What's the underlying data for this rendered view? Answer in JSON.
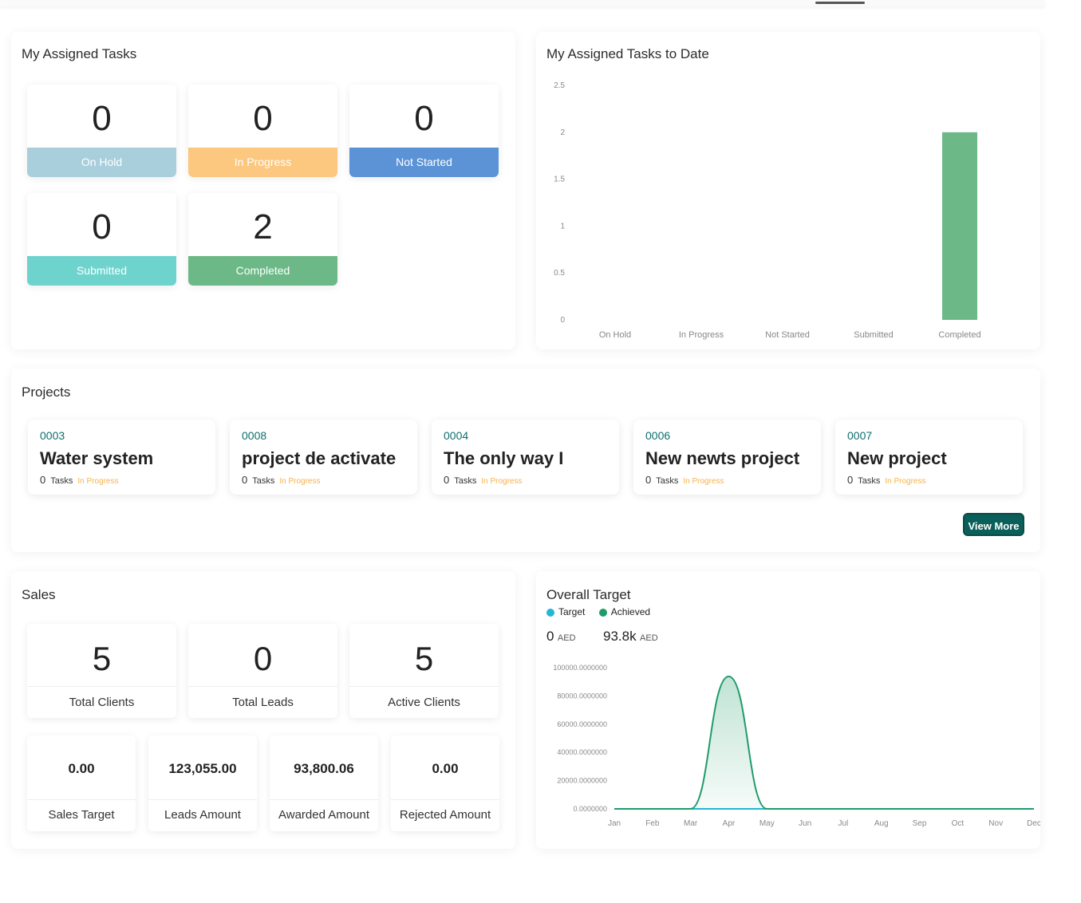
{
  "tasks_panel": {
    "title": "My Assigned Tasks",
    "cards": [
      {
        "value": "0",
        "label": "On Hold",
        "color": "#a9cfdc"
      },
      {
        "value": "0",
        "label": "In Progress",
        "color": "#fcc77f"
      },
      {
        "value": "0",
        "label": "Not Started",
        "color": "#5b93d6"
      },
      {
        "value": "0",
        "label": "Submitted",
        "color": "#6fd3cd"
      },
      {
        "value": "2",
        "label": "Completed",
        "color": "#6cb987"
      }
    ]
  },
  "tasks_chart_panel": {
    "title": "My Assigned Tasks to Date"
  },
  "chart_data": [
    {
      "type": "bar",
      "categories": [
        "On Hold",
        "In Progress",
        "Not Started",
        "Submitted",
        "Completed"
      ],
      "values": [
        0,
        0,
        0,
        0,
        2
      ],
      "ylim": [
        0,
        2.5
      ],
      "yticks": [
        "0",
        "0.5",
        "1",
        "1.5",
        "2",
        "2.5"
      ],
      "bar_color": "#6cb987",
      "grid": false
    },
    {
      "type": "area",
      "categories": [
        "Jan",
        "Feb",
        "Mar",
        "Apr",
        "May",
        "Jun",
        "Jul",
        "Aug",
        "Sep",
        "Oct",
        "Nov",
        "Dec"
      ],
      "series": [
        {
          "name": "Target",
          "values": [
            0,
            0,
            0,
            0,
            0,
            0,
            0,
            0,
            0,
            0,
            0,
            0
          ],
          "color": "#20b8d6"
        },
        {
          "name": "Achieved",
          "values": [
            0,
            0,
            0,
            93800,
            0,
            0,
            0,
            0,
            0,
            0,
            0,
            0
          ],
          "color": "#1f9b6a"
        }
      ],
      "ylim": [
        0,
        100000
      ],
      "yticks": [
        "0.0000000",
        "20000.0000000",
        "40000.0000000",
        "60000.0000000",
        "80000.0000000",
        "100000.0000000"
      ],
      "grid": false,
      "legend": "top-left"
    }
  ],
  "projects_panel": {
    "title": "Projects",
    "tasks_word": "Tasks",
    "view_more": "View More",
    "items": [
      {
        "code": "0003",
        "name": "Water system",
        "count": "0",
        "status": "In Progress"
      },
      {
        "code": "0008",
        "name": "project de activate",
        "count": "0",
        "status": "In Progress"
      },
      {
        "code": "0004",
        "name": "The only way I",
        "count": "0",
        "status": "In Progress"
      },
      {
        "code": "0006",
        "name": "New newts project",
        "count": "0",
        "status": "In Progress"
      },
      {
        "code": "0007",
        "name": "New project",
        "count": "0",
        "status": "In Progress"
      }
    ]
  },
  "sales_panel": {
    "title": "Sales",
    "top_cards": [
      {
        "value": "5",
        "label": "Total Clients"
      },
      {
        "value": "0",
        "label": "Total Leads"
      },
      {
        "value": "5",
        "label": "Active Clients"
      }
    ],
    "bottom_cards": [
      {
        "value": "0.00",
        "label": "Sales Target"
      },
      {
        "value": "123,055.00",
        "label": "Leads Amount"
      },
      {
        "value": "93,800.06",
        "label": "Awarded Amount"
      },
      {
        "value": "0.00",
        "label": "Rejected Amount"
      }
    ]
  },
  "target_panel": {
    "title": "Overall Target",
    "legend": [
      {
        "label": "Target",
        "color": "#20b8d6"
      },
      {
        "label": "Achieved",
        "color": "#1f9b6a"
      }
    ],
    "target_value": "0",
    "achieved_value": "93.8k",
    "currency": "AED"
  }
}
